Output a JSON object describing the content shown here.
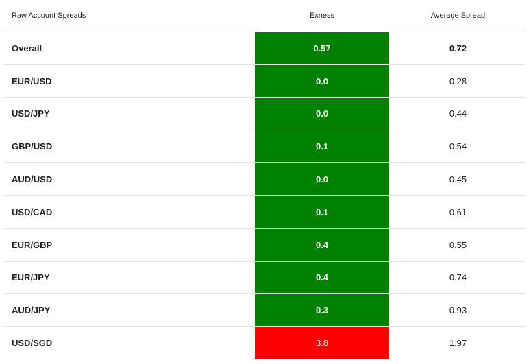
{
  "table": {
    "header": [
      "Raw Account Spreads",
      "Exness",
      "Average Spread"
    ],
    "rows": [
      [
        "Overall",
        "0.57",
        "0.72"
      ],
      [
        "EUR/USD",
        "0.0",
        "0.28"
      ],
      [
        "USD/JPY",
        "0.0",
        "0.44"
      ],
      [
        "GBP/USD",
        "0.1",
        "0.54"
      ],
      [
        "AUD/USD",
        "0.0",
        "0.45"
      ],
      [
        "USD/CAD",
        "0.1",
        "0.61"
      ],
      [
        "EUR/GBP",
        "0.4",
        "0.55"
      ],
      [
        "EUR/JPY",
        "0.4",
        "0.74"
      ],
      [
        "AUD/JPY",
        "0.3",
        "0.93"
      ],
      [
        "USD/SGD",
        "3.8",
        "1.97"
      ]
    ],
    "exness_colors": [
      "#008000",
      "#008000",
      "#008000",
      "#008000",
      "#008000",
      "#008000",
      "#008000",
      "#008000",
      "#008000",
      "#ff0000"
    ]
  }
}
